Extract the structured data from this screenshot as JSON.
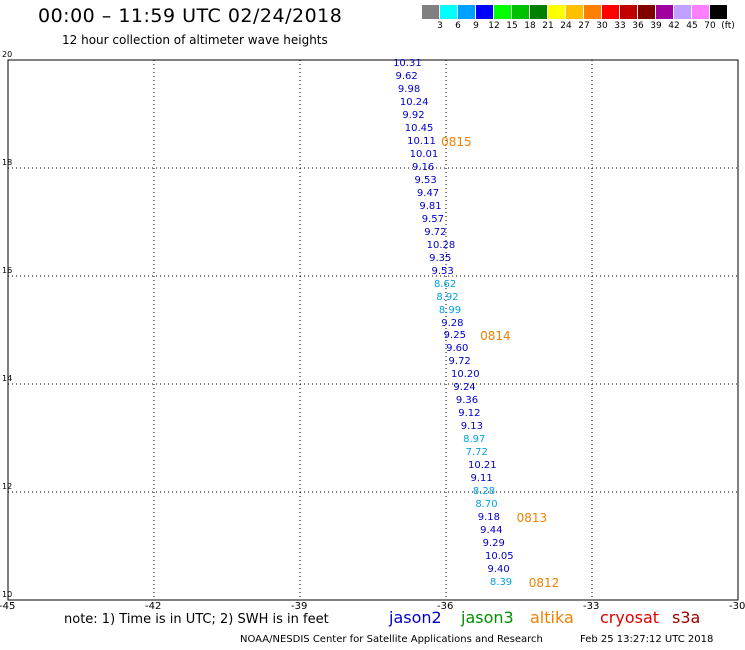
{
  "header": {
    "title": "00:00 – 11:59 UTC 02/24/2018",
    "subtitle": "12 hour collection of altimeter wave heights"
  },
  "colorbar": {
    "colors": [
      "#808080",
      "#00ffff",
      "#00a0ff",
      "#0000ff",
      "#00ff00",
      "#00c000",
      "#008000",
      "#ffff00",
      "#ffc000",
      "#ff8000",
      "#ff0000",
      "#c00000",
      "#800000",
      "#a000a0",
      "#c0a0ff",
      "#ff80ff",
      "#000000"
    ],
    "labels": [
      "3",
      "6",
      "9",
      "12",
      "15",
      "18",
      "21",
      "24",
      "27",
      "30",
      "33",
      "36",
      "39",
      "42",
      "45",
      "70",
      "(ft)"
    ]
  },
  "chart_data": {
    "type": "scatter",
    "title": "00:00 – 11:59 UTC 02/24/2018",
    "subtitle": "12 hour collection of altimeter wave heights",
    "xlim": [
      -45,
      -30
    ],
    "ylim": [
      10,
      20
    ],
    "x_ticks": [
      "-45",
      "-42",
      "-39",
      "-36",
      "-33",
      "-30"
    ],
    "y_ticks": [
      "20",
      "18",
      "16",
      "14",
      "12",
      "10"
    ],
    "grid": true,
    "series": [
      {
        "name": "jason2",
        "points": [
          {
            "x": -36.8,
            "y": 19.93,
            "value": "10.31",
            "color": "#0000c8"
          },
          {
            "x": -36.75,
            "y": 19.69,
            "value": "9.62",
            "color": "#0000c8"
          },
          {
            "x": -36.7,
            "y": 19.45,
            "value": "9.98",
            "color": "#0000c8"
          },
          {
            "x": -36.66,
            "y": 19.21,
            "value": "10.24",
            "color": "#0000c8"
          },
          {
            "x": -36.61,
            "y": 18.97,
            "value": "9.92",
            "color": "#0000c8"
          },
          {
            "x": -36.56,
            "y": 18.73,
            "value": "10.45",
            "color": "#0000c8"
          },
          {
            "x": -36.51,
            "y": 18.48,
            "value": "10.11",
            "color": "#0000c8"
          },
          {
            "x": -36.46,
            "y": 18.24,
            "value": "10.01",
            "color": "#0000c8"
          },
          {
            "x": -36.41,
            "y": 18.0,
            "value": "9.16",
            "color": "#0000c8"
          },
          {
            "x": -36.36,
            "y": 17.76,
            "value": "9.53",
            "color": "#0000c8"
          },
          {
            "x": -36.31,
            "y": 17.52,
            "value": "9.47",
            "color": "#0000c8"
          },
          {
            "x": -36.26,
            "y": 17.28,
            "value": "9.81",
            "color": "#0000c8"
          },
          {
            "x": -36.21,
            "y": 17.04,
            "value": "9.57",
            "color": "#0000c8"
          },
          {
            "x": -36.16,
            "y": 16.8,
            "value": "9.72",
            "color": "#0000c8"
          },
          {
            "x": -36.11,
            "y": 16.56,
            "value": "10.28",
            "color": "#0000c8"
          },
          {
            "x": -36.06,
            "y": 16.32,
            "value": "9.35",
            "color": "#0000c8"
          },
          {
            "x": -36.01,
            "y": 16.08,
            "value": "9.53",
            "color": "#0000c8"
          },
          {
            "x": -35.96,
            "y": 15.84,
            "value": "8.62",
            "color": "#00a0e0"
          },
          {
            "x": -35.91,
            "y": 15.6,
            "value": "8.92",
            "color": "#00a0e0"
          },
          {
            "x": -35.86,
            "y": 15.36,
            "value": "8.99",
            "color": "#00a0e0"
          },
          {
            "x": -35.81,
            "y": 15.12,
            "value": "9.28",
            "color": "#0000c8"
          },
          {
            "x": -35.76,
            "y": 14.88,
            "value": "9.25",
            "color": "#0000c8"
          },
          {
            "x": -35.71,
            "y": 14.64,
            "value": "9.60",
            "color": "#0000c8"
          },
          {
            "x": -35.66,
            "y": 14.4,
            "value": "9.72",
            "color": "#0000c8"
          },
          {
            "x": -35.61,
            "y": 14.16,
            "value": "10.20",
            "color": "#0000c8"
          },
          {
            "x": -35.56,
            "y": 13.92,
            "value": "9.24",
            "color": "#0000c8"
          },
          {
            "x": -35.51,
            "y": 13.68,
            "value": "9.36",
            "color": "#0000c8"
          },
          {
            "x": -35.46,
            "y": 13.44,
            "value": "9.12",
            "color": "#0000c8"
          },
          {
            "x": -35.41,
            "y": 13.2,
            "value": "9.13",
            "color": "#0000c8"
          },
          {
            "x": -35.36,
            "y": 12.96,
            "value": "8.97",
            "color": "#00a0e0"
          },
          {
            "x": -35.31,
            "y": 12.72,
            "value": "7.72",
            "color": "#00a0e0"
          },
          {
            "x": -35.26,
            "y": 12.48,
            "value": "10.21",
            "color": "#0000c8"
          },
          {
            "x": -35.21,
            "y": 12.24,
            "value": "9.11",
            "color": "#0000c8"
          },
          {
            "x": -35.16,
            "y": 12.0,
            "value": "8.28",
            "color": "#00a0e0"
          },
          {
            "x": -35.11,
            "y": 11.76,
            "value": "8.70",
            "color": "#00a0e0"
          },
          {
            "x": -35.06,
            "y": 11.52,
            "value": "9.18",
            "color": "#0000c8"
          },
          {
            "x": -35.01,
            "y": 11.28,
            "value": "9.44",
            "color": "#0000c8"
          },
          {
            "x": -34.96,
            "y": 11.04,
            "value": "9.29",
            "color": "#0000c8"
          },
          {
            "x": -34.91,
            "y": 10.8,
            "value": "10.05",
            "color": "#0000c8"
          },
          {
            "x": -34.86,
            "y": 10.56,
            "value": "9.40",
            "color": "#0000c8"
          },
          {
            "x": -34.81,
            "y": 10.32,
            "value": "8.39",
            "color": "#00a0e0"
          }
        ]
      }
    ],
    "time_labels": [
      {
        "text": "0815",
        "x": -36.1,
        "y": 18.48
      },
      {
        "text": "0814",
        "x": -35.3,
        "y": 14.88
      },
      {
        "text": "0813",
        "x": -34.55,
        "y": 11.52
      },
      {
        "text": "0812",
        "x": -34.3,
        "y": 10.32
      }
    ]
  },
  "footer": {
    "note": "note: 1) Time is in UTC; 2) SWH is in feet",
    "legend": [
      {
        "name": "jason2",
        "color": "#0000c8"
      },
      {
        "name": "jason3",
        "color": "#009000"
      },
      {
        "name": "altika",
        "color": "#f08000"
      },
      {
        "name": "cryosat",
        "color": "#e00000"
      },
      {
        "name": "s3a",
        "color": "#a00000"
      }
    ],
    "credit": "NOAA/NESDIS Center for Satellite Applications and Research",
    "timestamp": "Feb 25 13:27:12 UTC 2018"
  }
}
